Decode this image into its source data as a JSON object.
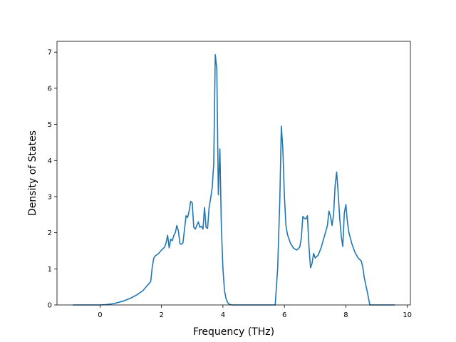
{
  "chart_data": {
    "type": "line",
    "title": "",
    "xlabel": "Frequency (THz)",
    "ylabel": "Density of States",
    "xlim": [
      -1.4,
      10.1
    ],
    "ylim": [
      0,
      7.3
    ],
    "grid": false,
    "xticks": [
      0,
      2,
      4,
      6,
      8,
      10
    ],
    "xtick_labels": [
      "0",
      "2",
      "4",
      "6",
      "8",
      "10"
    ],
    "yticks": [
      0,
      1,
      2,
      3,
      4,
      5,
      6,
      7
    ],
    "ytick_labels": [
      "0",
      "1",
      "2",
      "3",
      "4",
      "5",
      "6",
      "7"
    ],
    "line_color": "#1f77b4",
    "series": [
      {
        "x": [
          -0.88,
          0.0,
          0.2,
          0.4,
          0.6,
          0.8,
          1.0,
          1.2,
          1.4,
          1.55,
          1.65,
          1.7,
          1.75,
          1.8,
          1.9,
          2.0,
          2.1,
          2.15,
          2.2,
          2.25,
          2.3,
          2.35,
          2.4,
          2.45,
          2.5,
          2.55,
          2.6,
          2.65,
          2.7,
          2.75,
          2.8,
          2.85,
          2.9,
          2.95,
          3.0,
          3.05,
          3.1,
          3.15,
          3.2,
          3.25,
          3.3,
          3.35,
          3.4,
          3.45,
          3.5,
          3.55,
          3.6,
          3.65,
          3.7,
          3.75,
          3.8,
          3.85,
          3.9,
          3.95,
          4.0,
          4.05,
          4.1,
          4.15,
          4.2,
          4.3,
          4.4,
          5.7,
          5.78,
          5.85,
          5.9,
          5.95,
          6.0,
          6.05,
          6.1,
          6.2,
          6.3,
          6.4,
          6.5,
          6.55,
          6.6,
          6.65,
          6.7,
          6.75,
          6.8,
          6.85,
          6.9,
          6.95,
          7.0,
          7.1,
          7.2,
          7.3,
          7.4,
          7.45,
          7.5,
          7.55,
          7.6,
          7.65,
          7.7,
          7.75,
          7.8,
          7.85,
          7.9,
          7.95,
          8.0,
          8.05,
          8.1,
          8.2,
          8.3,
          8.4,
          8.5,
          8.55,
          8.6,
          8.7,
          8.78,
          9.6
        ],
        "y": [
          0.0,
          0.0,
          0.01,
          0.03,
          0.07,
          0.12,
          0.19,
          0.28,
          0.4,
          0.55,
          0.65,
          1.05,
          1.3,
          1.36,
          1.42,
          1.52,
          1.6,
          1.72,
          1.93,
          1.58,
          1.82,
          1.78,
          1.92,
          2.0,
          2.2,
          2.05,
          1.7,
          1.68,
          1.72,
          2.1,
          2.47,
          2.42,
          2.6,
          2.87,
          2.83,
          2.15,
          2.1,
          2.2,
          2.3,
          2.15,
          2.18,
          2.1,
          2.7,
          2.15,
          2.12,
          2.7,
          2.95,
          3.25,
          3.9,
          6.93,
          6.55,
          3.05,
          4.32,
          2.1,
          1.0,
          0.4,
          0.18,
          0.07,
          0.02,
          0.0,
          0.0,
          0.0,
          1.0,
          2.9,
          4.95,
          4.3,
          3.0,
          2.2,
          1.95,
          1.7,
          1.57,
          1.52,
          1.6,
          1.85,
          2.45,
          2.4,
          2.38,
          2.47,
          1.6,
          1.03,
          1.15,
          1.43,
          1.3,
          1.38,
          1.6,
          1.9,
          2.2,
          2.6,
          2.45,
          2.2,
          2.5,
          3.3,
          3.68,
          3.1,
          2.4,
          1.9,
          1.62,
          2.55,
          2.78,
          2.3,
          2.0,
          1.68,
          1.45,
          1.3,
          1.22,
          1.05,
          0.75,
          0.35,
          0.0,
          0.0
        ]
      }
    ]
  }
}
